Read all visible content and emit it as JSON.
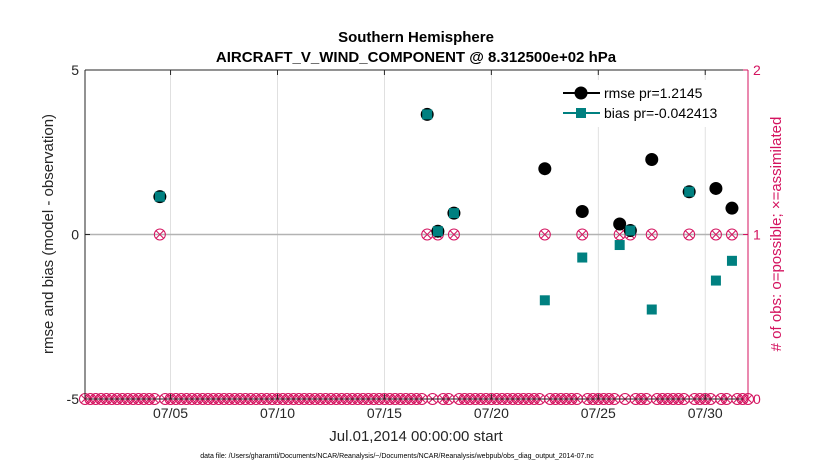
{
  "colors": {
    "rmse": "#000000",
    "bias": "#008080",
    "obs": "#d4135f",
    "grid": "#d9d9d9",
    "zero_line": "#b3b3b3",
    "axis": "#262626"
  },
  "chart_data": {
    "type": "scatter",
    "title_line1": "Southern Hemisphere",
    "title_line2": "AIRCRAFT_V_WIND_COMPONENT @ 8.312500e+02 hPa",
    "xlabel": "Jul.01,2014 00:00:00 start",
    "ylabel_left": "rmse and bias (model - observation)",
    "ylabel_right": "# of obs: o=possible; ×=assimilated",
    "footnote": "data file: /Users/gharamti/Documents/NCAR/Reanalysis/~/Documents/NCAR/Reanalysis/webpub/obs_diag_output_2014-07.nc",
    "xlim": [
      1.0,
      32.0
    ],
    "ylim_left": [
      -5,
      5
    ],
    "ylim_right": [
      0,
      2
    ],
    "x_ticks": [
      {
        "x": 5,
        "label": "07/05"
      },
      {
        "x": 10,
        "label": "07/10"
      },
      {
        "x": 15,
        "label": "07/15"
      },
      {
        "x": 20,
        "label": "07/20"
      },
      {
        "x": 25,
        "label": "07/25"
      },
      {
        "x": 30,
        "label": "07/30"
      }
    ],
    "y_ticks_left": [
      {
        "v": 5,
        "label": "5"
      },
      {
        "v": 0,
        "label": "0"
      },
      {
        "v": -5,
        "label": "-5"
      }
    ],
    "y_ticks_right": [
      {
        "v": 2,
        "label": "2"
      },
      {
        "v": 1,
        "label": "1"
      },
      {
        "v": 0,
        "label": "0"
      }
    ],
    "legend": {
      "position": "top-right",
      "rmse": "rmse pr=1.2145",
      "bias": "bias pr=-0.042413"
    },
    "rmse": [
      {
        "x": 4.5,
        "y": 1.15
      },
      {
        "x": 17.0,
        "y": 3.65
      },
      {
        "x": 17.5,
        "y": 0.1
      },
      {
        "x": 18.25,
        "y": 0.65
      },
      {
        "x": 22.5,
        "y": 2.0
      },
      {
        "x": 24.25,
        "y": 0.7
      },
      {
        "x": 26.0,
        "y": 0.32
      },
      {
        "x": 26.5,
        "y": 0.12
      },
      {
        "x": 27.5,
        "y": 2.28
      },
      {
        "x": 29.25,
        "y": 1.3
      },
      {
        "x": 30.5,
        "y": 1.4
      },
      {
        "x": 31.25,
        "y": 0.8
      }
    ],
    "bias": [
      {
        "x": 4.5,
        "y": 1.15
      },
      {
        "x": 17.0,
        "y": 3.65
      },
      {
        "x": 17.5,
        "y": 0.1
      },
      {
        "x": 18.25,
        "y": 0.65
      },
      {
        "x": 22.5,
        "y": -2.0
      },
      {
        "x": 24.25,
        "y": -0.7
      },
      {
        "x": 26.0,
        "y": -0.32
      },
      {
        "x": 26.5,
        "y": 0.12
      },
      {
        "x": 27.5,
        "y": -2.28
      },
      {
        "x": 29.25,
        "y": 1.3
      },
      {
        "x": 30.5,
        "y": -1.4
      },
      {
        "x": 31.25,
        "y": -0.8
      }
    ],
    "obs_count_one": [
      4.5,
      17.0,
      17.5,
      18.25,
      22.5,
      24.25,
      26.0,
      26.5,
      27.5,
      29.25,
      30.5,
      31.25
    ],
    "obs_count_zero_spacing_days": 0.25
  }
}
